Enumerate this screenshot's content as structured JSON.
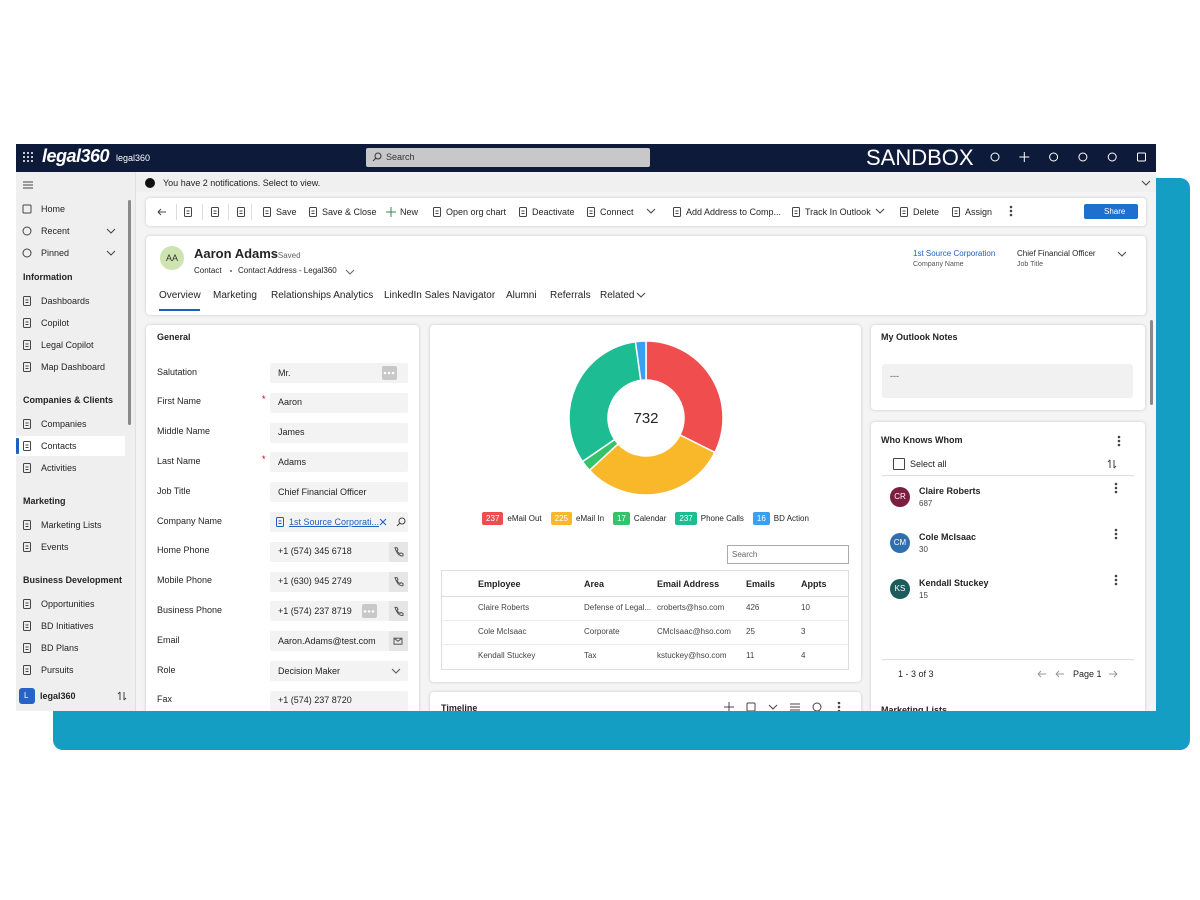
{
  "top_bar": {
    "logo": "legal360",
    "app_name": "legal360",
    "search_placeholder": "Search",
    "environment": "SANDBOX"
  },
  "nav": {
    "top_items": [
      "Home",
      "Recent",
      "Pinned"
    ],
    "sections": [
      {
        "title": "Information",
        "items": [
          "Dashboards",
          "Copilot",
          "Legal Copilot",
          "Map Dashboard"
        ]
      },
      {
        "title": "Companies & Clients",
        "items": [
          "Companies",
          "Contacts",
          "Activities"
        ]
      },
      {
        "title": "Marketing",
        "items": [
          "Marketing Lists",
          "Events"
        ]
      },
      {
        "title": "Business Development",
        "items": [
          "Opportunities",
          "BD Initiatives",
          "BD Plans",
          "Pursuits"
        ]
      }
    ],
    "footer": {
      "badge": "L",
      "label": "legal360"
    }
  },
  "notification": "You have 2 notifications. Select to view.",
  "command_bar": {
    "commands": [
      "Save",
      "Save & Close",
      "New",
      "Open org chart",
      "Deactivate",
      "Connect",
      "Add Address to Comp...",
      "Track In Outlook",
      "Delete",
      "Assign"
    ],
    "share": "Share"
  },
  "header": {
    "initials": "AA",
    "name": "Aaron Adams",
    "status": "- Saved",
    "entity": "Contact",
    "form": "Contact Address - Legal360",
    "company": "1st Source Corporation",
    "company_label": "Company Name",
    "job_title": "Chief Financial Officer",
    "job_title_label": "Job Title"
  },
  "tabs": [
    "Overview",
    "Marketing",
    "Relationships Analytics",
    "LinkedIn Sales Navigator",
    "Alumni",
    "Referrals",
    "Related"
  ],
  "general": {
    "title": "General",
    "fields": [
      {
        "label": "Salutation",
        "value": "Mr."
      },
      {
        "label": "First Name",
        "value": "Aaron",
        "marker": "*"
      },
      {
        "label": "Middle Name",
        "value": "James"
      },
      {
        "label": "Last Name",
        "value": "Adams",
        "marker": "*"
      },
      {
        "label": "Job Title",
        "value": "Chief Financial Officer"
      },
      {
        "label": "Company Name",
        "value": "1st Source Corporati..."
      },
      {
        "label": "Home Phone",
        "value": "+1 (574) 345 6718"
      },
      {
        "label": "Mobile Phone",
        "value": "+1 (630) 945 2749"
      },
      {
        "label": "Business Phone",
        "value": "+1 (574) 237 8719"
      },
      {
        "label": "Email",
        "value": "Aaron.Adams@test.com"
      },
      {
        "label": "Role",
        "value": "Decision Maker"
      },
      {
        "label": "Fax",
        "value": "+1 (574) 237 8720"
      }
    ]
  },
  "chart_data": {
    "type": "donut",
    "total": 732,
    "categories": [
      "eMail Out",
      "eMail In",
      "Calendar",
      "Phone Calls",
      "BD Action"
    ],
    "values": [
      237,
      225,
      17,
      237,
      16
    ],
    "colors": [
      "#f04e4e",
      "#f9b82a",
      "#34c26b",
      "#1dbc93",
      "#3b9ff0"
    ]
  },
  "activity_table": {
    "search_placeholder": "Search",
    "columns": [
      "Employee",
      "Area",
      "Email Address",
      "Emails",
      "Appts"
    ],
    "rows": [
      [
        "Claire Roberts",
        "Defense of Legal...",
        "croberts@hso.com",
        426,
        10
      ],
      [
        "Cole McIsaac",
        "Corporate",
        "CMcIsaac@hso.com",
        25,
        3
      ],
      [
        "Kendall Stuckey",
        "Tax",
        "kstuckey@hso.com",
        11,
        4
      ]
    ]
  },
  "timeline_title": "Timeline",
  "outlook_notes": {
    "title": "My Outlook Notes",
    "text": "---"
  },
  "who_knows_whom": {
    "title": "Who Knows Whom",
    "select_all": "Select all",
    "people": [
      {
        "initials": "CR",
        "name": "Claire Roberts",
        "count": 687,
        "color": "#7b1f40"
      },
      {
        "initials": "CM",
        "name": "Cole McIsaac",
        "count": 30,
        "color": "#2f6fae"
      },
      {
        "initials": "KS",
        "name": "Kendall Stuckey",
        "count": 15,
        "color": "#1d5c5c"
      }
    ],
    "pagination": "1 - 3 of 3",
    "page": "Page 1"
  },
  "marketing_lists_title": "Marketing Lists"
}
